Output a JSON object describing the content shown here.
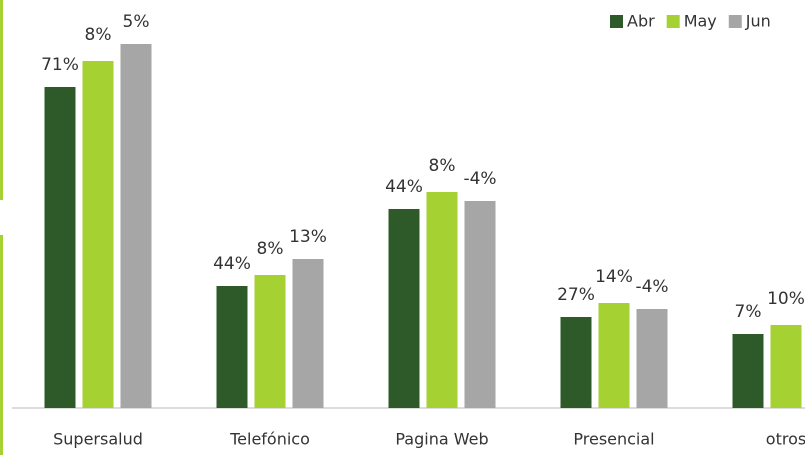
{
  "chart_data": {
    "type": "bar",
    "categories": [
      "Supersalud",
      "Telefónico",
      "Pagina Web",
      "Presencial",
      "otros"
    ],
    "series": [
      {
        "name": "Abr",
        "color": "#2e5a2a",
        "values": [
          321,
          122,
          199,
          91,
          74
        ],
        "labels": [
          "71%",
          "44%",
          "44%",
          "27%",
          "7%"
        ]
      },
      {
        "name": "May",
        "color": "#a6d132",
        "values": [
          347,
          133,
          216,
          105,
          83
        ],
        "labels": [
          "8%",
          "8%",
          "8%",
          "14%",
          "10%"
        ]
      },
      {
        "name": "Jun",
        "color": "#a6a6a6",
        "values": [
          364,
          149,
          207,
          99,
          null
        ],
        "labels": [
          "5%",
          "13%",
          "-4%",
          "-4%",
          null
        ]
      }
    ],
    "ylim": [
      0,
      380
    ],
    "legend": "top-right"
  }
}
